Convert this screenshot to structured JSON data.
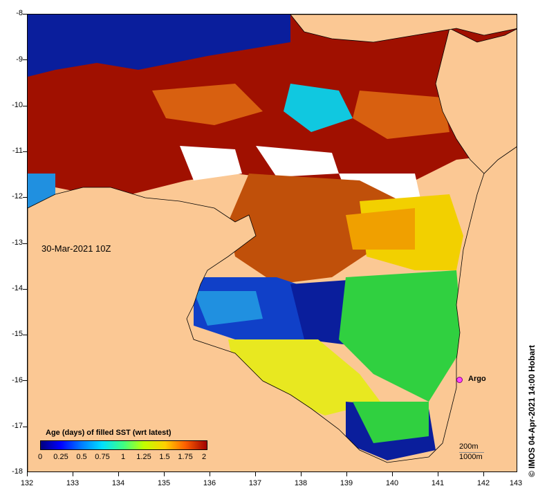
{
  "map": {
    "title": "",
    "timestamp": "30-Mar-2021 10Z",
    "x_axis": {
      "ticks": [
        "132",
        "133",
        "134",
        "135",
        "136",
        "137",
        "138",
        "139",
        "140",
        "141",
        "142",
        "143"
      ]
    },
    "y_axis": {
      "ticks": [
        "-8",
        "-9",
        "-10",
        "-11",
        "-12",
        "-13",
        "-14",
        "-15",
        "-16",
        "-17",
        "-18"
      ]
    },
    "lon_range": [
      132,
      143
    ],
    "lat_range": [
      -18,
      -8
    ],
    "colors": {
      "land": "#fbc894",
      "no_data": "#ffffff"
    },
    "legend": {
      "title": "Age (days) of filled SST (wrt latest)",
      "ticks": [
        "0",
        "0.25",
        "0.5",
        "0.75",
        "1",
        "1.25",
        "1.5",
        "1.75",
        "2"
      ],
      "range": [
        0,
        2
      ],
      "colormap": [
        "#00007f",
        "#0000ff",
        "#0080ff",
        "#00e0ff",
        "#40ff80",
        "#c0ff00",
        "#ffd000",
        "#ff6000",
        "#a00000"
      ]
    },
    "markers": [
      {
        "label": "Argo",
        "lon": 141.7,
        "lat": -16.0,
        "color": "#ff44ff"
      }
    ],
    "depth_contours": [
      "200m",
      "1000m"
    ],
    "credit": "© IMOS 04-Apr-2021 14:00 Hobart"
  }
}
